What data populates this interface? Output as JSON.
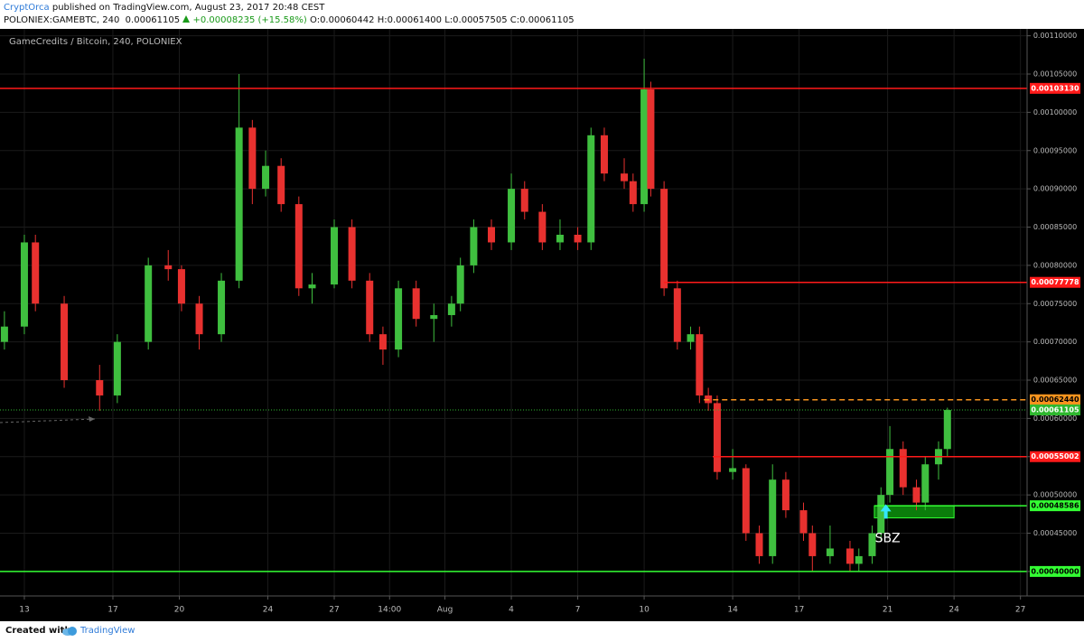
{
  "header": {
    "author": "CryptOrca",
    "published": "published on TradingView.com, August 23, 2017 20:48 CEST",
    "symbol": "POLONIEX:GAMEBTC, 240",
    "last": "0.00061105",
    "change": "+0.00008235 (+15.58%)",
    "open": "O:0.00060442",
    "high": "H:0.00061400",
    "low": "L:0.00057505",
    "close": "C:0.00061105"
  },
  "footer": {
    "created": "Created with",
    "brand": "TradingView"
  },
  "chart_data": {
    "type": "candlestick",
    "title": "GameCredits / Bitcoin, 240, POLONIEX",
    "colors": {
      "up": "#3fbf3f",
      "down": "#e8312f"
    },
    "xlim": [
      -1.1,
      45.3
    ],
    "ylim": [
      0.000368,
      0.001109
    ],
    "xticks": [
      {
        "value": 0,
        "label": "13"
      },
      {
        "value": 4,
        "label": "17"
      },
      {
        "value": 7,
        "label": "20"
      },
      {
        "value": 11,
        "label": "24"
      },
      {
        "value": 14,
        "label": "27"
      },
      {
        "value": 16.5,
        "label": "14:00"
      },
      {
        "value": 19,
        "label": "Aug"
      },
      {
        "value": 22,
        "label": "4"
      },
      {
        "value": 25,
        "label": "7"
      },
      {
        "value": 28,
        "label": "10"
      },
      {
        "value": 32,
        "label": "14"
      },
      {
        "value": 35,
        "label": "17"
      },
      {
        "value": 39,
        "label": "21"
      },
      {
        "value": 42,
        "label": "24"
      },
      {
        "value": 45,
        "label": "27"
      }
    ],
    "yticks": [
      {
        "value": 0.0004,
        "label": "0.00040000"
      },
      {
        "value": 0.00045,
        "label": "0.00045000"
      },
      {
        "value": 0.0005,
        "label": "0.00050000"
      },
      {
        "value": 0.00055,
        "label": "0.00055000"
      },
      {
        "value": 0.0006,
        "label": "0.00060000"
      },
      {
        "value": 0.00065,
        "label": "0.00065000"
      },
      {
        "value": 0.0007,
        "label": "0.00070000"
      },
      {
        "value": 0.00075,
        "label": "0.00075000"
      },
      {
        "value": 0.0008,
        "label": "0.00080000"
      },
      {
        "value": 0.00085,
        "label": "0.00085000"
      },
      {
        "value": 0.0009,
        "label": "0.00090000"
      },
      {
        "value": 0.00095,
        "label": "0.00095000"
      },
      {
        "value": 0.001,
        "label": "0.00100000"
      },
      {
        "value": 0.00105,
        "label": "0.00105000"
      },
      {
        "value": 0.0011,
        "label": "0.00110000"
      }
    ],
    "grid": true,
    "series": [
      {
        "name": "GAMEBTC",
        "x": [
          -0.9,
          0,
          0.5,
          1.8,
          3.4,
          4.2,
          5.6,
          6.5,
          7.1,
          7.9,
          8.9,
          9.7,
          10.3,
          10.9,
          11.6,
          12.4,
          13,
          14,
          14.8,
          15.6,
          16.2,
          16.9,
          17.7,
          18.5,
          19.3,
          19.7,
          20.3,
          21.1,
          22,
          22.6,
          23.4,
          24.2,
          25,
          25.6,
          26.2,
          27.1,
          27.5,
          28,
          28.3,
          28.9,
          29.5,
          30.1,
          30.5,
          30.9,
          31.3,
          32,
          32.6,
          33.2,
          33.8,
          34.4,
          35.2,
          35.6,
          36.4,
          37.3,
          37.7,
          38.3,
          38.7,
          39.1,
          39.7,
          40.3,
          40.7,
          41.3,
          41.7
        ],
        "open": [
          0.0007,
          0.00072,
          0.00083,
          0.00075,
          0.00065,
          0.00063,
          0.0007,
          0.0008,
          0.000795,
          0.00075,
          0.00071,
          0.00078,
          0.00098,
          0.0009,
          0.00093,
          0.00088,
          0.00077,
          0.000775,
          0.00085,
          0.00078,
          0.00071,
          0.00069,
          0.00077,
          0.00073,
          0.000735,
          0.00075,
          0.0008,
          0.00085,
          0.00083,
          0.0009,
          0.00087,
          0.00083,
          0.00084,
          0.00083,
          0.00097,
          0.00092,
          0.00091,
          0.00088,
          0.00103,
          0.0009,
          0.00077,
          0.0007,
          0.00071,
          0.00063,
          0.00062,
          0.00053,
          0.000535,
          0.00045,
          0.00042,
          0.00052,
          0.00048,
          0.00045,
          0.00042,
          0.00043,
          0.00041,
          0.00042,
          0.00045,
          0.0005,
          0.00056,
          0.00051,
          0.00049,
          0.00054,
          0.00056
        ],
        "high": [
          0.00074,
          0.00084,
          0.00084,
          0.00076,
          0.00067,
          0.00071,
          0.00081,
          0.00082,
          0.0008,
          0.00076,
          0.00079,
          0.00105,
          0.00099,
          0.00095,
          0.00094,
          0.00089,
          0.00079,
          0.00086,
          0.00086,
          0.00079,
          0.00072,
          0.00078,
          0.00078,
          0.00075,
          0.00076,
          0.00081,
          0.00086,
          0.00086,
          0.00092,
          0.00091,
          0.00088,
          0.00086,
          0.00085,
          0.00098,
          0.00098,
          0.00094,
          0.00092,
          0.00107,
          0.00104,
          0.00091,
          0.00078,
          0.00072,
          0.00072,
          0.00064,
          0.00063,
          0.00056,
          0.00054,
          0.00046,
          0.00054,
          0.00053,
          0.00049,
          0.00046,
          0.00046,
          0.00044,
          0.00043,
          0.00046,
          0.00051,
          0.00059,
          0.00057,
          0.00052,
          0.00055,
          0.00057,
          0.000614
        ],
        "low": [
          0.00069,
          0.00071,
          0.00074,
          0.00064,
          0.00061,
          0.00062,
          0.00069,
          0.00078,
          0.00074,
          0.00069,
          0.0007,
          0.00077,
          0.00088,
          0.00089,
          0.00087,
          0.00076,
          0.00075,
          0.00077,
          0.00077,
          0.0007,
          0.00067,
          0.00068,
          0.00072,
          0.0007,
          0.00072,
          0.00074,
          0.00079,
          0.00082,
          0.00082,
          0.00086,
          0.00082,
          0.00082,
          0.00082,
          0.00082,
          0.00091,
          0.0009,
          0.00087,
          0.00087,
          0.00089,
          0.00076,
          0.00069,
          0.00069,
          0.00062,
          0.00061,
          0.00052,
          0.00052,
          0.00044,
          0.00041,
          0.00041,
          0.00047,
          0.00044,
          0.0004,
          0.00041,
          0.0004,
          0.0004,
          0.00041,
          0.00044,
          0.00049,
          0.0005,
          0.00048,
          0.00048,
          0.00052,
          0.00055
        ],
        "close": [
          0.00072,
          0.00083,
          0.00075,
          0.00065,
          0.00063,
          0.0007,
          0.0008,
          0.000795,
          0.00075,
          0.00071,
          0.00078,
          0.00098,
          0.0009,
          0.00093,
          0.00088,
          0.00077,
          0.000775,
          0.00085,
          0.00078,
          0.00071,
          0.00069,
          0.00077,
          0.00073,
          0.000735,
          0.00075,
          0.0008,
          0.00085,
          0.00083,
          0.0009,
          0.00087,
          0.00083,
          0.00084,
          0.00083,
          0.00097,
          0.00092,
          0.00091,
          0.00088,
          0.00103,
          0.0009,
          0.00077,
          0.0007,
          0.00071,
          0.00063,
          0.00062,
          0.00053,
          0.000535,
          0.00045,
          0.00042,
          0.00052,
          0.00048,
          0.00045,
          0.00042,
          0.00043,
          0.00041,
          0.00042,
          0.00045,
          0.0005,
          0.00056,
          0.00051,
          0.00049,
          0.00054,
          0.00056,
          0.000611
        ]
      }
    ],
    "levels": [
      {
        "value": 0.0010313,
        "label": "0.00103130",
        "color": "#ff1a1a",
        "text_color": "#ffffff",
        "dash": "solid"
      },
      {
        "value": 0.00077778,
        "label": "0.00077778",
        "color": "#ff1a1a",
        "text_color": "#ffffff",
        "dash": "solid",
        "x_start": 28.9
      },
      {
        "value": 0.0006244,
        "label": "0.00062440",
        "color": "#f7931e",
        "text_color": "#000000",
        "dash": "dashed",
        "x_start": 30.7
      },
      {
        "value": 0.00061105,
        "label": "0.00061105",
        "color": "#2fb82f",
        "text_color": "#ffffff",
        "dash": "dotted"
      },
      {
        "value": 0.00055002,
        "label": "0.00055002",
        "color": "#ff1a1a",
        "text_color": "#ffffff",
        "dash": "solid",
        "x_start": 31.1
      },
      {
        "value": 0.00048586,
        "label": "0.00048586",
        "color": "#33ff33",
        "text_color": "#000000",
        "dash": "solid",
        "x_start": 38.4
      },
      {
        "value": 0.0004,
        "label": "0.00040000",
        "color": "#33ff33",
        "text_color": "#000000",
        "dash": "solid"
      }
    ],
    "zone": {
      "x": [
        38.4,
        42
      ],
      "y": [
        0.00047,
        0.00048586
      ],
      "color": "#0b7d0b"
    },
    "annotations": [
      {
        "text": "SBZ",
        "x": 39.0,
        "y": 0.000443
      }
    ]
  }
}
